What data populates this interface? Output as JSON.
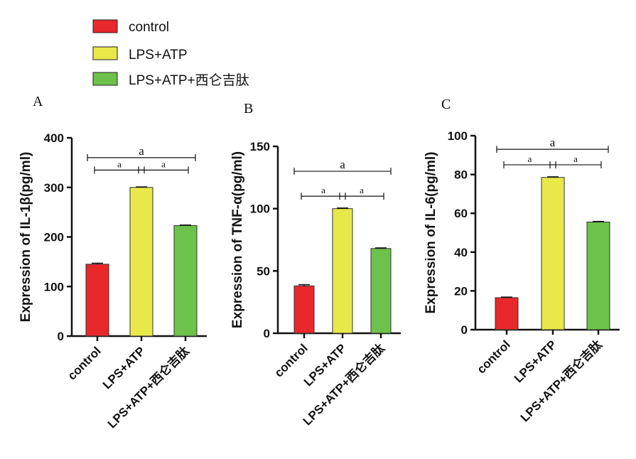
{
  "legend": {
    "entries": [
      {
        "label": "control",
        "color": "#e8282a"
      },
      {
        "label": "LPS+ATP",
        "color": "#e8e84a"
      },
      {
        "label": "LPS+ATP+西仑吉肽",
        "color": "#6cc24a"
      }
    ]
  },
  "chart_data": [
    {
      "type": "bar",
      "panel_label": "A",
      "ylabel": "Expression of IL-1β(pg/ml)",
      "ylim": [
        0,
        400
      ],
      "yticks": [
        "0",
        "100",
        "200",
        "300",
        "400"
      ],
      "categories": [
        "control",
        "LPS+ATP",
        "LPS+ATP+西仑吉肽"
      ],
      "values": [
        145,
        300,
        223
      ],
      "errors": [
        2,
        1,
        1
      ],
      "significance": [
        {
          "from": 0,
          "to": 2,
          "label": "a",
          "level": 360
        },
        {
          "from": 0,
          "to": 1,
          "label": "a",
          "level": 335
        },
        {
          "from": 1,
          "to": 2,
          "label": "a",
          "level": 335
        }
      ]
    },
    {
      "type": "bar",
      "panel_label": "B",
      "ylabel": "Expression of TNF-α(pg/ml)",
      "ylim": [
        0,
        150
      ],
      "yticks": [
        "0",
        "50",
        "100",
        "150"
      ],
      "categories": [
        "control",
        "LPS+ATP",
        "LPS+ATP+西仑吉肽"
      ],
      "values": [
        38,
        100,
        68
      ],
      "errors": [
        1,
        0.5,
        0.5
      ],
      "significance": [
        {
          "from": 0,
          "to": 2,
          "label": "a",
          "level": 130
        },
        {
          "from": 0,
          "to": 1,
          "label": "a",
          "level": 110
        },
        {
          "from": 1,
          "to": 2,
          "label": "a",
          "level": 110
        }
      ]
    },
    {
      "type": "bar",
      "panel_label": "C",
      "ylabel": "Expression of IL-6(pg/ml)",
      "ylim": [
        0,
        100
      ],
      "yticks": [
        "0",
        "20",
        "40",
        "60",
        "80",
        "100"
      ],
      "categories": [
        "control",
        "LPS+ATP",
        "LPS+ATP+西仑吉肽"
      ],
      "values": [
        16.5,
        78.5,
        55.5
      ],
      "errors": [
        0.3,
        0.3,
        0.3
      ],
      "significance": [
        {
          "from": 0,
          "to": 2,
          "label": "a",
          "level": 93
        },
        {
          "from": 0,
          "to": 1,
          "label": "a",
          "level": 85
        },
        {
          "from": 1,
          "to": 2,
          "label": "a",
          "level": 85
        }
      ]
    }
  ]
}
